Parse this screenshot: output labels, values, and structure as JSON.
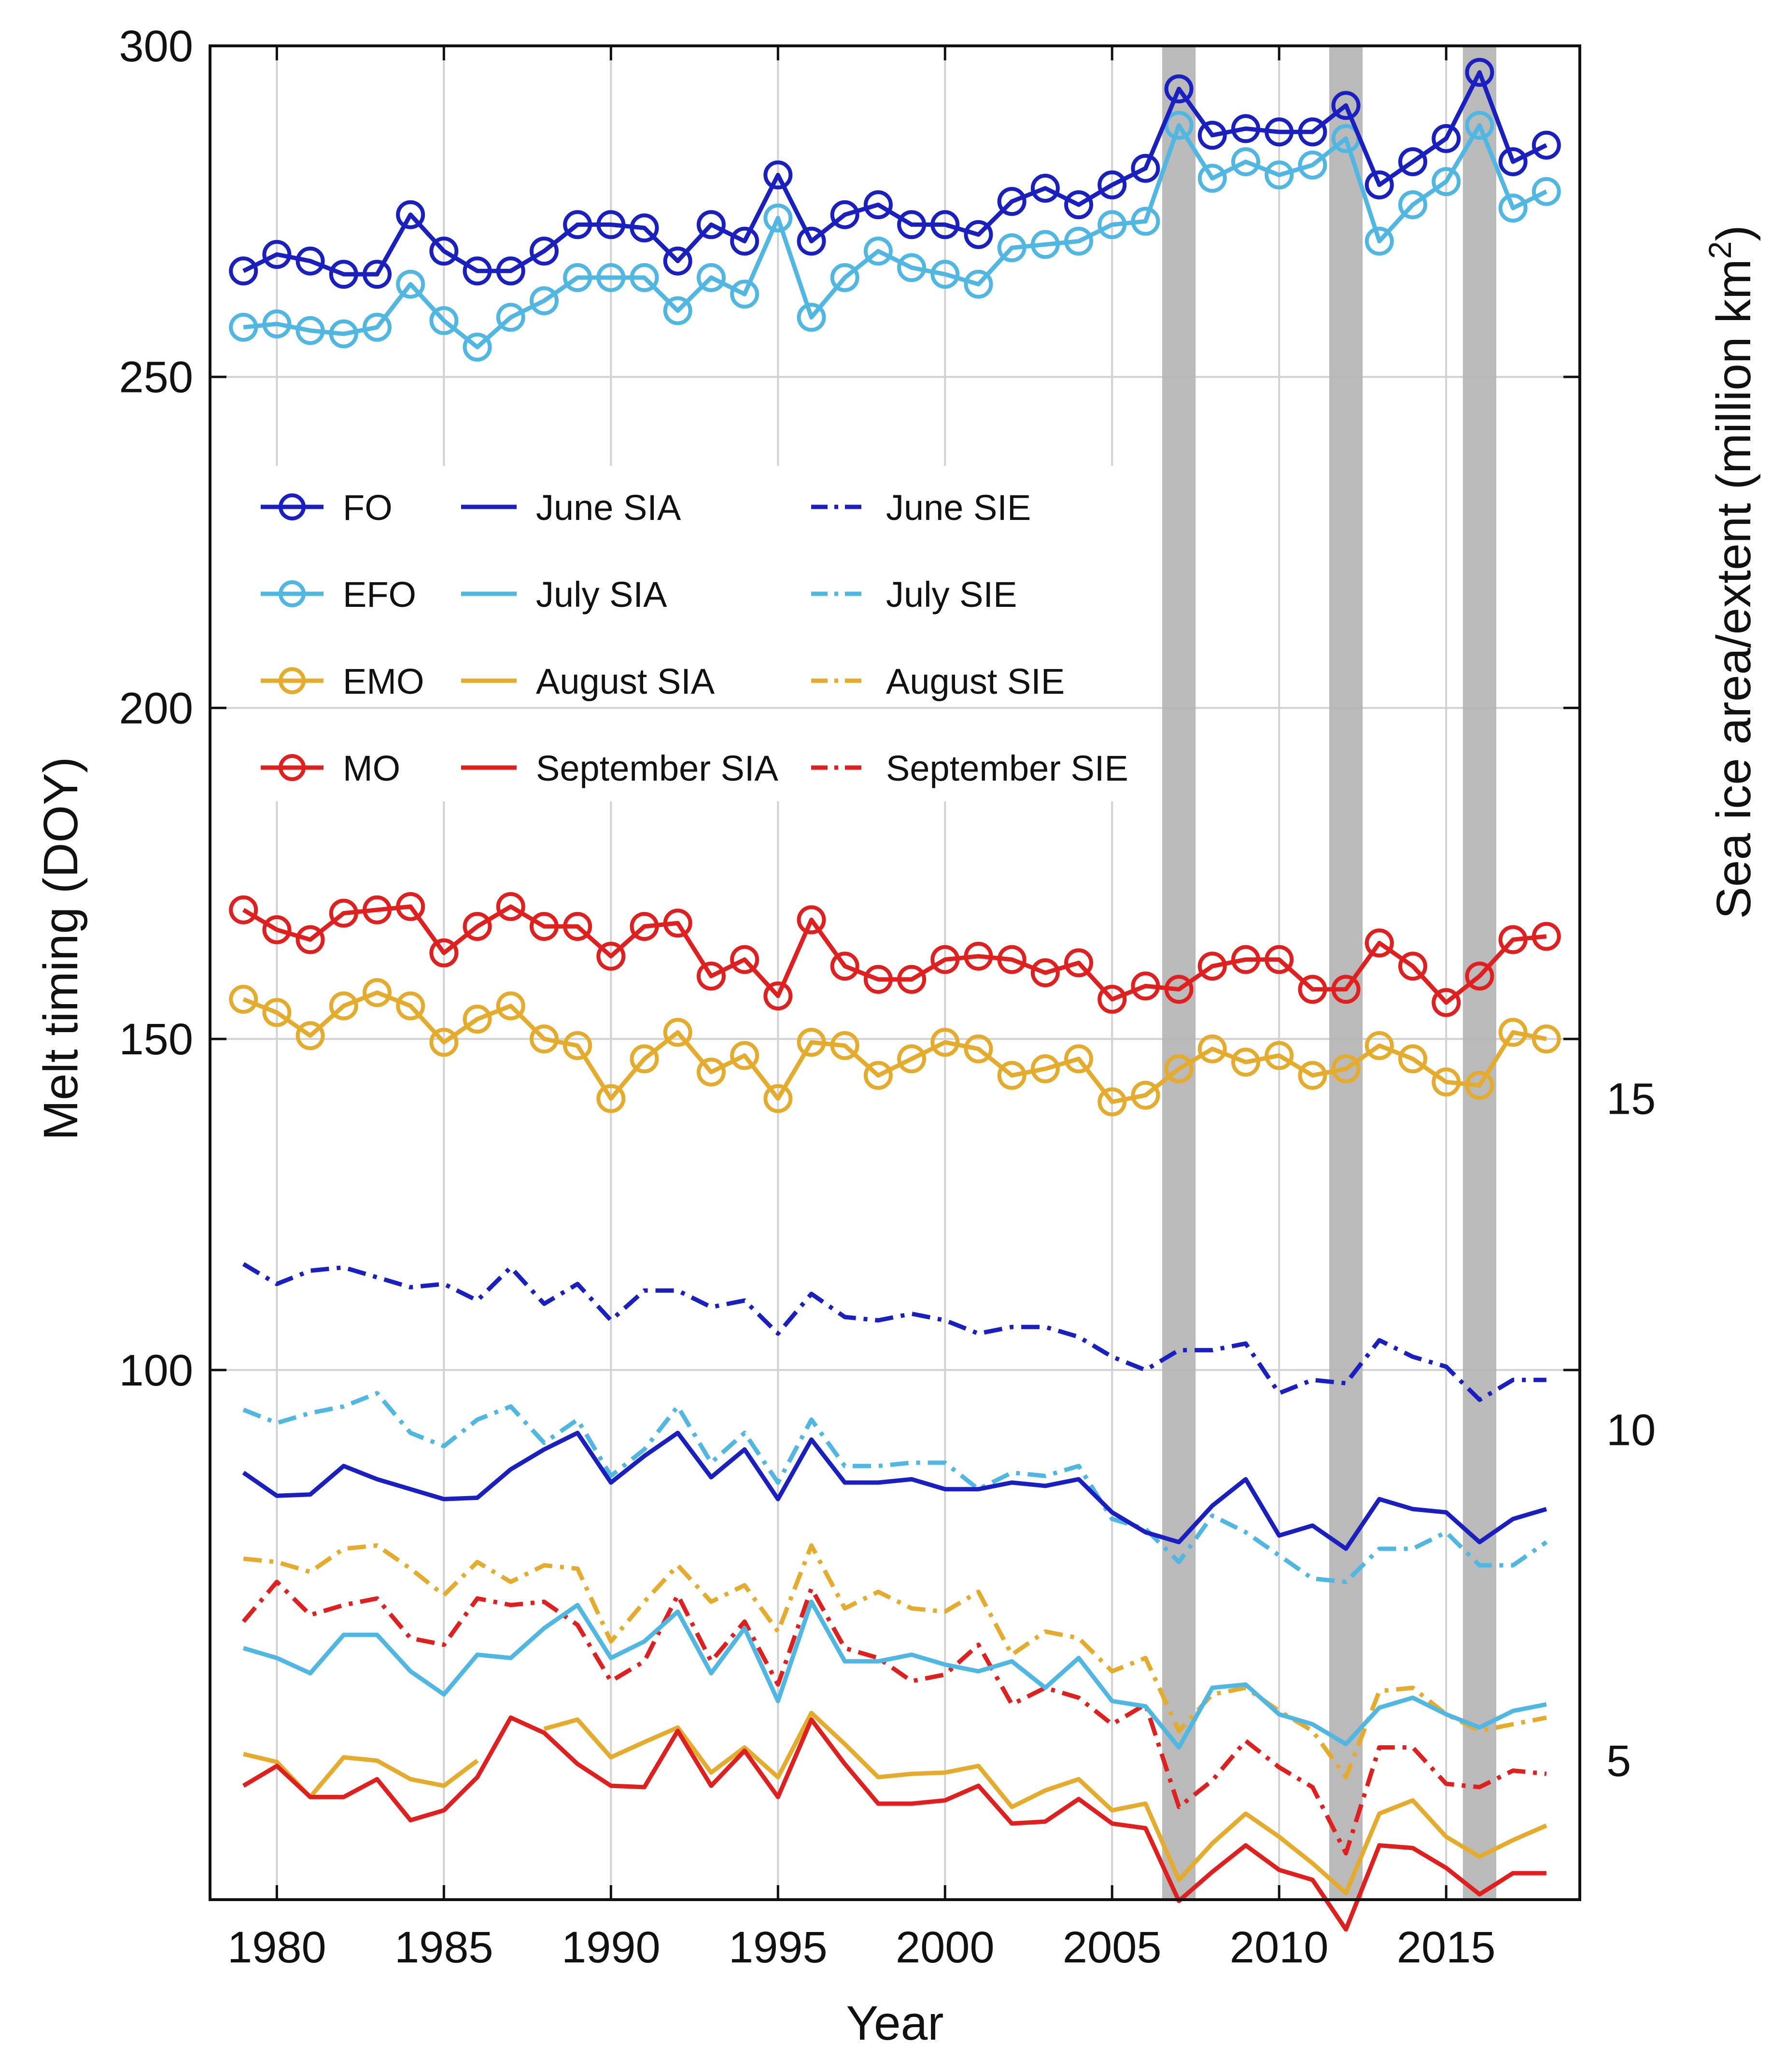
{
  "chart_data": {
    "type": "line",
    "xlabel": "Year",
    "ylabel_left": "Melt timing (DOY)",
    "ylabel_right_prefix": "Sea ice area/extent (million km",
    "ylabel_right_sup": "2",
    "ylabel_right_suffix": ")",
    "xlim": [
      1978,
      2019
    ],
    "ylim_left": [
      20,
      300
    ],
    "ylim_right": [
      2.9,
      30.9
    ],
    "x_ticks": [
      1980,
      1985,
      1990,
      1995,
      2000,
      2005,
      2010,
      2015
    ],
    "x_tick_labels": [
      "1980",
      "1985",
      "1990",
      "1995",
      "2000",
      "2005",
      "2010",
      "2015"
    ],
    "y_left_ticks": [
      100,
      150,
      200,
      250,
      300
    ],
    "y_left_tick_labels": [
      "100",
      "150",
      "200",
      "250",
      "300"
    ],
    "y_right_ticks": [
      5,
      10,
      15
    ],
    "y_right_tick_labels": [
      "5",
      "10",
      "15"
    ],
    "grid": true,
    "highlight_years": [
      2007,
      2012,
      2016
    ],
    "legend_position": "upper-left inside plot",
    "x": [
      1979,
      1980,
      1981,
      1982,
      1983,
      1984,
      1985,
      1986,
      1987,
      1988,
      1989,
      1990,
      1991,
      1992,
      1993,
      1994,
      1995,
      1996,
      1997,
      1998,
      1999,
      2000,
      2001,
      2002,
      2003,
      2004,
      2005,
      2006,
      2007,
      2008,
      2009,
      2010,
      2011,
      2012,
      2013,
      2014,
      2015,
      2016,
      2017,
      2018
    ],
    "series": [
      {
        "id": "fo",
        "name": "FO",
        "axis": "left",
        "style": "marker",
        "color": "#1a1fbf",
        "values": [
          266,
          268.5,
          267.5,
          265.5,
          265.5,
          274.5,
          269,
          266,
          266,
          269,
          273,
          273,
          272.5,
          267.5,
          273,
          270.5,
          280.5,
          270.5,
          274.5,
          276,
          273,
          273,
          271.5,
          276.5,
          278.5,
          276,
          279,
          281.5,
          293.5,
          286.5,
          287.5,
          287,
          287,
          291,
          279,
          282.5,
          286,
          296,
          282.5,
          285
        ]
      },
      {
        "id": "efo",
        "name": "EFO",
        "axis": "left",
        "style": "marker",
        "color": "#4fb7e2",
        "values": [
          257.5,
          258,
          257,
          256.5,
          257.5,
          264,
          258.5,
          254.5,
          259,
          261.5,
          265,
          265,
          265,
          260,
          265,
          262.5,
          274,
          259,
          265,
          269,
          266.5,
          265.5,
          264,
          269.5,
          270,
          270.5,
          273,
          273.5,
          288,
          280,
          282.5,
          280.5,
          282,
          286,
          270.5,
          276,
          279.5,
          288,
          275.5,
          278
        ]
      },
      {
        "id": "emo",
        "name": "EMO",
        "axis": "left",
        "style": "marker",
        "color": "#e4ab2c",
        "values": [
          156,
          154,
          150.5,
          155,
          157,
          155,
          149.5,
          153,
          155,
          150,
          149,
          141,
          147,
          151,
          145,
          147.5,
          141,
          149.5,
          149,
          144.5,
          147,
          149.5,
          148.5,
          144.5,
          145.5,
          147,
          140.5,
          141.5,
          145.5,
          148.5,
          146.5,
          147.5,
          144.5,
          145.5,
          149,
          147,
          143.5,
          143,
          151,
          150
        ]
      },
      {
        "id": "mo",
        "name": "MO",
        "axis": "left",
        "style": "marker",
        "color": "#e01f1f",
        "values": [
          169.5,
          166.5,
          165,
          169,
          169.5,
          170,
          163,
          167,
          170,
          167,
          167,
          162.5,
          167,
          167.5,
          159.5,
          162,
          156.5,
          168,
          161,
          159,
          159,
          162,
          162.5,
          162,
          160,
          161.5,
          156,
          158,
          157.5,
          161,
          162,
          162,
          157.5,
          157.5,
          164.5,
          161,
          155.5,
          159.5,
          165,
          165.5
        ]
      },
      {
        "id": "june_sia",
        "name": "June SIA",
        "axis": "right",
        "style": "solid",
        "color": "#1a1fbf",
        "values": [
          9.35,
          9.0,
          9.02,
          9.45,
          9.25,
          9.1,
          8.95,
          8.97,
          9.4,
          9.7,
          9.95,
          9.2,
          9.6,
          9.95,
          9.28,
          9.7,
          8.95,
          9.85,
          9.2,
          9.2,
          9.25,
          9.1,
          9.1,
          9.2,
          9.15,
          9.25,
          8.75,
          8.45,
          8.3,
          8.85,
          9.25,
          8.4,
          8.55,
          8.2,
          8.95,
          8.8,
          8.75,
          8.3,
          8.65,
          8.8
        ]
      },
      {
        "id": "july_sia",
        "name": "July SIA",
        "axis": "right",
        "style": "solid",
        "color": "#4fb7e2",
        "values": [
          6.7,
          6.55,
          6.32,
          6.9,
          6.9,
          6.35,
          6.0,
          6.6,
          6.55,
          7.0,
          7.35,
          6.55,
          6.8,
          7.25,
          6.32,
          7.0,
          5.9,
          7.4,
          6.5,
          6.5,
          6.6,
          6.45,
          6.35,
          6.5,
          6.1,
          6.55,
          5.9,
          5.82,
          5.2,
          6.1,
          6.15,
          5.7,
          5.55,
          5.25,
          5.8,
          5.95,
          5.7,
          5.5,
          5.75,
          5.85
        ]
      },
      {
        "id": "august_sia",
        "name": "August SIA",
        "axis": "right",
        "style": "solid",
        "color": "#e4ab2c",
        "values": [
          5.1,
          4.98,
          4.45,
          5.05,
          5.0,
          4.72,
          4.62,
          5.0,
          null,
          5.48,
          5.62,
          5.05,
          5.28,
          5.5,
          4.82,
          5.2,
          4.75,
          5.72,
          5.25,
          4.75,
          4.8,
          4.82,
          4.92,
          4.3,
          4.55,
          4.72,
          4.25,
          4.35,
          3.2,
          3.75,
          4.2,
          3.85,
          3.45,
          3.0,
          4.2,
          4.4,
          3.85,
          3.55,
          3.8,
          4.02
        ]
      },
      {
        "id": "september_sia",
        "name": "September SIA",
        "axis": "right",
        "style": "solid",
        "color": "#e01f1f",
        "values": [
          4.62,
          4.92,
          4.45,
          4.45,
          4.72,
          4.1,
          4.25,
          4.75,
          5.65,
          5.42,
          4.95,
          4.62,
          4.6,
          5.45,
          4.62,
          5.15,
          4.45,
          5.62,
          4.95,
          4.35,
          4.35,
          4.4,
          4.62,
          4.05,
          4.08,
          4.42,
          4.05,
          3.98,
          2.88,
          3.32,
          3.72,
          3.35,
          3.2,
          2.45,
          3.72,
          3.68,
          3.38,
          2.98,
          3.3,
          3.3
        ]
      },
      {
        "id": "june_sie",
        "name": "June SIE",
        "axis": "right",
        "style": "dashed",
        "color": "#1a1fbf",
        "values": [
          12.5,
          12.2,
          12.4,
          12.45,
          12.3,
          12.15,
          12.2,
          11.95,
          12.45,
          11.9,
          12.2,
          11.65,
          12.1,
          12.1,
          11.85,
          11.95,
          11.45,
          12.05,
          11.7,
          11.65,
          11.75,
          11.65,
          11.45,
          11.55,
          11.55,
          11.4,
          11.1,
          10.9,
          11.2,
          11.2,
          11.3,
          10.55,
          10.75,
          10.7,
          11.35,
          11.1,
          10.95,
          10.45,
          10.75,
          10.75
        ]
      },
      {
        "id": "july_sie",
        "name": "July SIE",
        "axis": "right",
        "style": "dashed",
        "color": "#4fb7e2",
        "values": [
          10.3,
          10.1,
          10.25,
          10.35,
          10.55,
          9.95,
          9.75,
          10.15,
          10.35,
          9.8,
          10.15,
          9.3,
          9.7,
          10.35,
          9.5,
          9.95,
          9.2,
          10.15,
          9.45,
          9.45,
          9.5,
          9.5,
          9.1,
          9.35,
          9.3,
          9.45,
          8.65,
          8.5,
          8.0,
          8.7,
          8.45,
          8.1,
          7.75,
          7.7,
          8.2,
          8.2,
          8.45,
          7.95,
          7.95,
          8.3
        ]
      },
      {
        "id": "august_sie",
        "name": "August SIE",
        "axis": "right",
        "style": "dashed",
        "color": "#e4ab2c",
        "values": [
          8.05,
          8.0,
          7.85,
          8.2,
          8.25,
          7.9,
          7.5,
          8.0,
          7.7,
          7.95,
          7.9,
          6.8,
          7.4,
          7.95,
          7.4,
          7.65,
          6.95,
          8.25,
          7.3,
          7.55,
          7.3,
          7.25,
          7.55,
          6.6,
          6.95,
          6.85,
          6.35,
          6.55,
          5.45,
          6.0,
          6.1,
          5.75,
          5.45,
          4.75,
          6.05,
          6.1,
          5.7,
          5.45,
          5.55,
          5.65
        ]
      },
      {
        "id": "september_sie",
        "name": "September SIE",
        "axis": "right",
        "style": "dashed",
        "color": "#e01f1f",
        "values": [
          7.1,
          7.7,
          7.2,
          7.35,
          7.45,
          6.85,
          6.75,
          7.45,
          7.35,
          7.4,
          7.05,
          6.2,
          6.5,
          7.5,
          6.5,
          7.1,
          6.15,
          7.6,
          6.7,
          6.55,
          6.2,
          6.3,
          6.75,
          5.85,
          6.1,
          5.95,
          5.55,
          5.85,
          4.3,
          4.7,
          5.3,
          4.9,
          4.6,
          3.6,
          5.2,
          5.2,
          4.65,
          4.6,
          4.85,
          4.8
        ]
      }
    ],
    "legend": [
      {
        "series": "fo",
        "label": "FO"
      },
      {
        "series": "june_sia",
        "label": "June SIA"
      },
      {
        "series": "june_sie",
        "label": "June SIE"
      },
      {
        "series": "efo",
        "label": "EFO"
      },
      {
        "series": "july_sia",
        "label": "July SIA"
      },
      {
        "series": "july_sie",
        "label": "July  SIE"
      },
      {
        "series": "emo",
        "label": "EMO"
      },
      {
        "series": "august_sia",
        "label": "August SIA"
      },
      {
        "series": "august_sie",
        "label": "August  SIE"
      },
      {
        "series": "mo",
        "label": "MO"
      },
      {
        "series": "september_sia",
        "label": "September  SIA"
      },
      {
        "series": "september_sie",
        "label": "September SIE"
      }
    ]
  }
}
